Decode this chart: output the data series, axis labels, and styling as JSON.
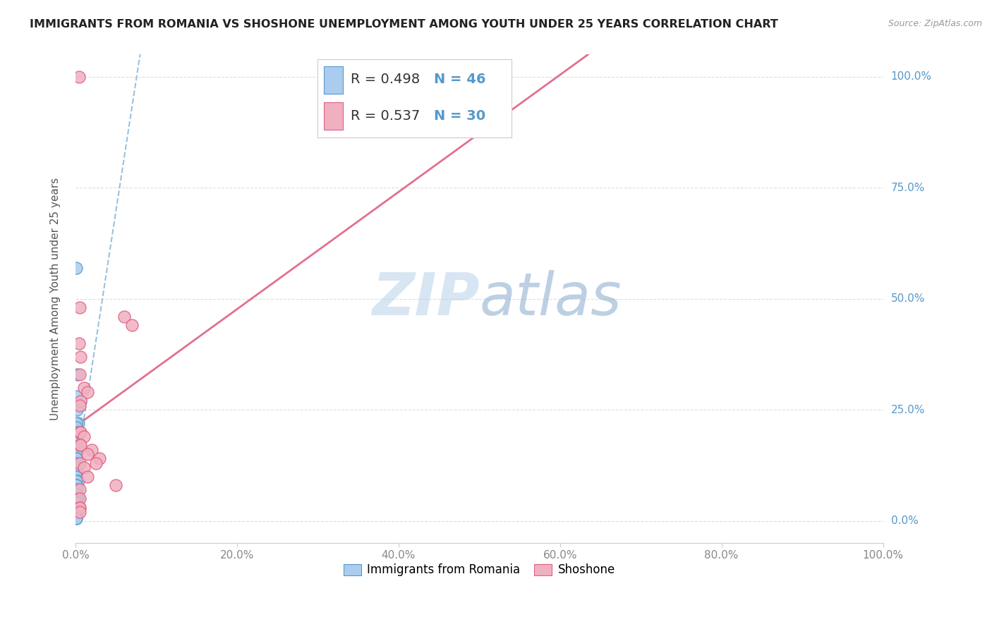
{
  "title": "IMMIGRANTS FROM ROMANIA VS SHOSHONE UNEMPLOYMENT AMONG YOUTH UNDER 25 YEARS CORRELATION CHART",
  "source": "Source: ZipAtlas.com",
  "ylabel": "Unemployment Among Youth under 25 years",
  "legend_label1": "Immigrants from Romania",
  "legend_label2": "Shoshone",
  "r1": 0.498,
  "n1": 46,
  "r2": 0.537,
  "n2": 30,
  "color_blue": "#aaccee",
  "color_pink": "#f0b0c0",
  "color_blue_dark": "#5599cc",
  "color_pink_dark": "#e06080",
  "color_blue_line": "#88aacc",
  "color_pink_line": "#e06080",
  "watermark_zip": "ZIP",
  "watermark_atlas": "atlas",
  "romania_x": [
    0.1,
    0.2,
    0.3,
    0.1,
    0.1,
    0.2,
    0.1,
    0.1,
    0.05,
    0.1,
    0.1,
    0.2,
    0.15,
    0.1,
    0.3,
    0.1,
    0.08,
    0.1,
    0.05,
    0.1,
    0.2,
    0.1,
    0.1,
    0.1,
    0.1,
    0.3,
    0.1,
    0.05,
    0.1,
    0.2,
    0.1,
    0.1,
    0.3,
    0.15,
    0.1,
    0.2,
    0.1,
    0.05,
    0.1,
    0.08,
    0.1,
    0.2,
    0.1,
    0.1,
    0.1,
    0.1
  ],
  "romania_y": [
    57.0,
    33.0,
    22.0,
    22.0,
    28.0,
    25.0,
    21.0,
    20.0,
    19.0,
    18.0,
    18.0,
    17.0,
    19.0,
    16.0,
    16.0,
    15.0,
    14.0,
    14.0,
    13.0,
    12.0,
    12.0,
    11.0,
    11.0,
    10.0,
    10.0,
    9.0,
    9.0,
    8.0,
    8.0,
    7.0,
    6.0,
    6.0,
    5.0,
    5.0,
    5.0,
    4.0,
    4.0,
    3.0,
    3.0,
    2.0,
    2.0,
    2.0,
    2.0,
    1.0,
    0.5,
    0.5
  ],
  "shoshone_x": [
    0.4,
    0.5,
    0.4,
    0.6,
    0.5,
    1.0,
    1.5,
    0.6,
    0.5,
    0.5,
    0.5,
    0.6,
    1.0,
    0.5,
    0.6,
    2.0,
    1.5,
    3.0,
    0.5,
    2.5,
    1.0,
    1.5,
    5.0,
    0.5,
    6.0,
    7.0,
    0.5,
    0.5,
    0.5,
    0.5
  ],
  "shoshone_y": [
    100.0,
    48.0,
    40.0,
    37.0,
    33.0,
    30.0,
    29.0,
    27.0,
    26.0,
    20.0,
    20.0,
    20.0,
    19.0,
    17.0,
    17.0,
    16.0,
    15.0,
    14.0,
    13.0,
    13.0,
    12.0,
    10.0,
    8.0,
    7.0,
    46.0,
    44.0,
    5.0,
    3.0,
    3.0,
    2.0
  ],
  "xlim": [
    0.0,
    100.0
  ],
  "ylim": [
    -5.0,
    105.0
  ],
  "xticks": [
    0.0,
    20.0,
    40.0,
    60.0,
    80.0,
    100.0
  ],
  "xticklabels": [
    "0.0%",
    "20.0%",
    "40.0%",
    "60.0%",
    "80.0%",
    "100.0%"
  ],
  "yticks": [
    0.0,
    25.0,
    50.0,
    75.0,
    100.0
  ],
  "yticklabels_right": [
    "0.0%",
    "25.0%",
    "50.0%",
    "75.0%",
    "100.0%"
  ]
}
